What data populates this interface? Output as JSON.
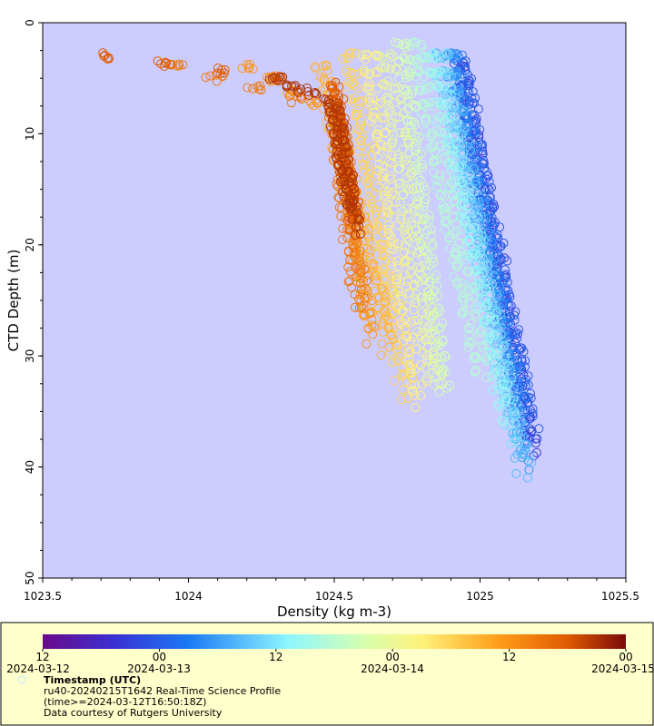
{
  "chart_data": {
    "type": "scatter",
    "marker": "open-circle",
    "xlabel": "Density (kg m-3)",
    "ylabel": "CTD Depth (m)",
    "xlim": [
      1023.5,
      1025.5
    ],
    "ylim": [
      0,
      50
    ],
    "y_inverted": true,
    "x_ticks": [
      "1023.5",
      "1024",
      "1024.5",
      "1025",
      "1025.5"
    ],
    "y_ticks": [
      "0",
      "10",
      "20",
      "30",
      "40",
      "50"
    ],
    "plot_background": "#ccccff",
    "colormap": "rainbow (purple-blue-cyan-yellow-orange-darkred)",
    "colorbar": {
      "hour_labels": [
        "12",
        "00",
        "12",
        "00",
        "12",
        "00"
      ],
      "date_labels": [
        "2024-03-12",
        "2024-03-13",
        "2024-03-14",
        "2024-03-15"
      ]
    },
    "series_by_time": [
      {
        "t": 0.0,
        "density_top": 1024.94,
        "top_depth": 4,
        "density_bottom": 1025.18,
        "bottom_depth": 39
      },
      {
        "t": 0.06,
        "density_top": 1024.93,
        "top_depth": 3.5,
        "density_bottom": 1025.17,
        "bottom_depth": 38
      },
      {
        "t": 0.12,
        "density_top": 1024.92,
        "top_depth": 3,
        "density_bottom": 1025.15,
        "bottom_depth": 36
      },
      {
        "t": 0.18,
        "density_top": 1024.9,
        "top_depth": 3,
        "density_bottom": 1025.16,
        "bottom_depth": 41
      },
      {
        "t": 0.24,
        "density_top": 1024.88,
        "top_depth": 3,
        "density_bottom": 1025.15,
        "bottom_depth": 41
      },
      {
        "t": 0.3,
        "density_top": 1024.86,
        "top_depth": 3,
        "density_bottom": 1025.12,
        "bottom_depth": 38
      },
      {
        "t": 0.36,
        "density_top": 1024.83,
        "top_depth": 3,
        "density_bottom": 1025.08,
        "bottom_depth": 36
      },
      {
        "t": 0.42,
        "density_top": 1024.78,
        "top_depth": 2,
        "density_bottom": 1025.0,
        "bottom_depth": 32
      },
      {
        "t": 0.48,
        "density_top": 1024.73,
        "top_depth": 2,
        "density_bottom": 1024.87,
        "bottom_depth": 34
      },
      {
        "t": 0.54,
        "density_top": 1024.68,
        "top_depth": 3,
        "density_bottom": 1024.84,
        "bottom_depth": 33
      },
      {
        "t": 0.6,
        "density_top": 1024.62,
        "top_depth": 3,
        "density_bottom": 1024.79,
        "bottom_depth": 35
      },
      {
        "t": 0.66,
        "density_top": 1024.55,
        "top_depth": 3,
        "density_bottom": 1024.74,
        "bottom_depth": 34
      },
      {
        "t": 0.72,
        "density_top": 1024.45,
        "top_depth": 4,
        "density_bottom": 1024.68,
        "bottom_depth": 30
      },
      {
        "t": 0.78,
        "density_top": 1024.2,
        "top_depth": 4,
        "density_bottom": 1024.62,
        "bottom_depth": 29
      },
      {
        "t": 0.84,
        "density_top": 1023.95,
        "top_depth": 4,
        "density_bottom": 1024.58,
        "bottom_depth": 26
      },
      {
        "t": 0.9,
        "density_top": 1023.72,
        "top_depth": 3,
        "density_bottom": 1024.57,
        "bottom_depth": 20
      },
      {
        "t": 0.96,
        "density_top": 1024.3,
        "top_depth": 5,
        "density_bottom": 1024.57,
        "bottom_depth": 19
      }
    ]
  },
  "legend": {
    "title": "Timestamp (UTC)",
    "line1": "ru40-20240215T1642 Real-Time Science Profile",
    "line2": "(time>=2024-03-12T16:50:18Z)",
    "line3": "Data courtesy of Rutgers University"
  },
  "colors": {
    "plot_bg": "#ccccff",
    "legend_bg": "#ffffcc",
    "legend_border": "#000000"
  }
}
